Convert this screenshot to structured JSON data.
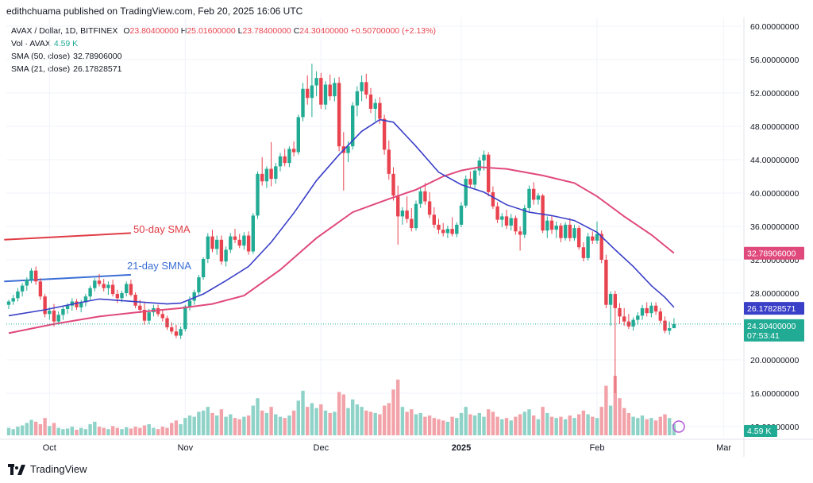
{
  "publisher": "edithchuama published on TradingView.com, Feb 20, 2025 16:06 UTC",
  "legend": {
    "symbol": "AVAX / Dollar, 1D, BITFINEX",
    "o_label": "O",
    "o_value": "23.80400000",
    "h_label": "H",
    "h_value": "25.01600000",
    "l_label": "L",
    "l_value": "23.78400000",
    "c_label": "C",
    "c_value": "24.30400000",
    "change": "+0.50700000 (+2.13%)",
    "vol_label": "Vol · AVAX",
    "vol_value": "4.59 K",
    "sma50_label": "SMA (50, close)",
    "sma50_value": "32.78906000",
    "sma21_label": "SMA (21, close)",
    "sma21_value": "26.17828571"
  },
  "colors": {
    "up": "#22ab94",
    "down": "#e8434f",
    "sma50": "#e0497b",
    "sma21": "#3a3fc8",
    "vol_up": "#8fd3c8",
    "vol_down": "#f2a3a9",
    "annot_red": "#e03c45",
    "annot_blue": "#3b6fd6",
    "badge_dark": "#131722",
    "grid": "#f0f3fa"
  },
  "annotations": {
    "sma50_text": "50-day SMA",
    "sma21_text": "21-day SMNA"
  },
  "badges": {
    "sma50": "32.78906000",
    "sma21": "26.17828571",
    "price": "24.30400000",
    "countdown": "07:53:41",
    "volume": "4.59 K"
  },
  "footer": {
    "brand": "TradingView"
  },
  "chart_data": {
    "type": "candlestick",
    "y_ticks": [
      "60.00000000",
      "56.00000000",
      "52.00000000",
      "48.00000000",
      "44.00000000",
      "40.00000000",
      "36.00000000",
      "32.00000000",
      "28.00000000",
      "24.00000000",
      "20.00000000",
      "16.00000000",
      "12.00000000"
    ],
    "ylim": [
      10.8,
      61.9
    ],
    "x_ticks": [
      {
        "label": "Oct",
        "bold": false
      },
      {
        "label": "Nov",
        "bold": false
      },
      {
        "label": "Dec",
        "bold": false
      },
      {
        "label": "2025",
        "bold": true
      },
      {
        "label": "Feb",
        "bold": false
      },
      {
        "label": "Mar",
        "bold": false
      }
    ],
    "candles": [
      [
        26.6,
        27.2,
        26.1,
        27.0
      ],
      [
        27.0,
        27.8,
        26.6,
        27.4
      ],
      [
        27.4,
        28.6,
        27.0,
        28.2
      ],
      [
        28.2,
        29.2,
        27.6,
        28.9
      ],
      [
        28.9,
        29.9,
        28.3,
        29.6
      ],
      [
        29.6,
        31.0,
        29.2,
        30.7
      ],
      [
        30.7,
        31.2,
        29.0,
        29.4
      ],
      [
        29.4,
        29.8,
        27.2,
        27.6
      ],
      [
        27.6,
        27.9,
        25.1,
        25.5
      ],
      [
        25.5,
        26.3,
        24.8,
        25.9
      ],
      [
        25.9,
        26.7,
        24.0,
        24.6
      ],
      [
        24.6,
        25.8,
        24.2,
        25.4
      ],
      [
        25.4,
        26.4,
        24.8,
        26.1
      ],
      [
        26.1,
        26.8,
        25.5,
        26.5
      ],
      [
        26.5,
        27.4,
        25.9,
        27.0
      ],
      [
        27.0,
        27.3,
        26.0,
        26.3
      ],
      [
        26.3,
        27.2,
        25.7,
        26.9
      ],
      [
        26.9,
        27.9,
        26.4,
        27.6
      ],
      [
        27.6,
        28.9,
        27.2,
        28.6
      ],
      [
        28.6,
        29.8,
        28.2,
        29.5
      ],
      [
        29.5,
        30.3,
        28.8,
        29.1
      ],
      [
        29.1,
        29.7,
        28.2,
        28.6
      ],
      [
        28.6,
        29.4,
        27.8,
        29.0
      ],
      [
        29.0,
        29.6,
        27.6,
        27.9
      ],
      [
        27.9,
        28.4,
        26.8,
        27.4
      ],
      [
        27.4,
        28.3,
        26.9,
        28.0
      ],
      [
        28.0,
        29.4,
        27.6,
        29.1
      ],
      [
        29.1,
        29.6,
        27.6,
        27.8
      ],
      [
        27.8,
        28.1,
        26.2,
        26.5
      ],
      [
        26.5,
        27.2,
        25.6,
        26.0
      ],
      [
        26.0,
        26.8,
        24.2,
        24.7
      ],
      [
        24.7,
        26.1,
        24.3,
        25.7
      ],
      [
        25.7,
        26.6,
        25.2,
        26.2
      ],
      [
        26.2,
        26.6,
        25.2,
        25.5
      ],
      [
        25.5,
        26.0,
        24.6,
        25.0
      ],
      [
        25.0,
        25.3,
        23.6,
        23.9
      ],
      [
        23.9,
        24.5,
        23.1,
        23.4
      ],
      [
        23.4,
        24.2,
        22.6,
        22.9
      ],
      [
        22.9,
        24.0,
        22.5,
        23.7
      ],
      [
        23.7,
        26.6,
        23.4,
        26.4
      ],
      [
        26.4,
        27.6,
        25.9,
        27.1
      ],
      [
        27.1,
        28.4,
        26.6,
        28.1
      ],
      [
        28.1,
        30.2,
        27.8,
        29.9
      ],
      [
        29.9,
        32.3,
        29.6,
        32.1
      ],
      [
        32.1,
        35.2,
        31.6,
        34.8
      ],
      [
        34.8,
        35.6,
        32.9,
        33.3
      ],
      [
        33.3,
        34.9,
        32.6,
        34.4
      ],
      [
        34.4,
        34.9,
        31.4,
        31.8
      ],
      [
        31.8,
        33.6,
        31.2,
        33.2
      ],
      [
        33.2,
        35.2,
        32.8,
        34.8
      ],
      [
        34.8,
        35.7,
        34.0,
        34.4
      ],
      [
        34.4,
        35.1,
        33.4,
        33.7
      ],
      [
        33.7,
        35.3,
        33.2,
        34.9
      ],
      [
        34.9,
        35.4,
        32.6,
        33.0
      ],
      [
        33.0,
        37.6,
        32.7,
        37.3
      ],
      [
        37.3,
        42.6,
        36.9,
        42.3
      ],
      [
        42.3,
        44.3,
        40.9,
        41.4
      ],
      [
        41.4,
        43.2,
        40.6,
        42.9
      ],
      [
        42.9,
        46.1,
        40.8,
        41.7
      ],
      [
        41.7,
        43.6,
        41.1,
        43.2
      ],
      [
        43.2,
        44.8,
        42.6,
        44.4
      ],
      [
        44.4,
        45.3,
        43.2,
        43.6
      ],
      [
        43.6,
        45.6,
        43.1,
        45.3
      ],
      [
        45.3,
        46.2,
        44.4,
        44.9
      ],
      [
        44.9,
        49.4,
        44.6,
        49.1
      ],
      [
        49.1,
        53.2,
        48.6,
        52.5
      ],
      [
        52.5,
        54.1,
        50.6,
        51.4
      ],
      [
        51.4,
        55.5,
        49.1,
        52.9
      ],
      [
        52.9,
        54.6,
        51.6,
        53.8
      ],
      [
        53.8,
        54.4,
        50.1,
        50.6
      ],
      [
        50.6,
        53.4,
        50.0,
        53.0
      ],
      [
        53.0,
        54.2,
        51.1,
        51.6
      ],
      [
        51.6,
        53.8,
        51.0,
        53.2
      ],
      [
        53.2,
        53.9,
        45.0,
        45.6
      ],
      [
        45.6,
        47.3,
        40.3,
        44.8
      ],
      [
        44.8,
        46.2,
        43.7,
        45.6
      ],
      [
        45.6,
        50.9,
        45.2,
        50.5
      ],
      [
        50.5,
        52.8,
        49.2,
        52.2
      ],
      [
        52.2,
        54.1,
        51.0,
        53.3
      ],
      [
        53.3,
        54.3,
        51.3,
        51.8
      ],
      [
        51.8,
        52.6,
        49.6,
        50.1
      ],
      [
        50.1,
        51.3,
        48.6,
        50.8
      ],
      [
        50.8,
        51.5,
        48.3,
        48.9
      ],
      [
        48.9,
        49.4,
        44.6,
        45.2
      ],
      [
        45.2,
        46.3,
        41.6,
        42.3
      ],
      [
        42.3,
        43.1,
        39.1,
        39.7
      ],
      [
        39.7,
        40.9,
        33.8,
        37.2
      ],
      [
        37.2,
        38.3,
        36.2,
        37.9
      ],
      [
        37.9,
        39.6,
        36.4,
        36.9
      ],
      [
        36.9,
        38.2,
        35.4,
        35.8
      ],
      [
        35.8,
        39.1,
        35.5,
        38.7
      ],
      [
        38.7,
        40.6,
        38.2,
        40.2
      ],
      [
        40.2,
        41.2,
        38.6,
        39.0
      ],
      [
        39.0,
        40.1,
        37.0,
        37.4
      ],
      [
        37.4,
        38.3,
        35.8,
        36.2
      ],
      [
        36.2,
        36.9,
        35.1,
        35.6
      ],
      [
        35.6,
        36.4,
        34.8,
        35.2
      ],
      [
        35.2,
        36.1,
        34.6,
        35.7
      ],
      [
        35.7,
        37.1,
        34.8,
        35.1
      ],
      [
        35.1,
        36.5,
        34.7,
        36.2
      ],
      [
        36.2,
        38.9,
        35.9,
        38.5
      ],
      [
        38.5,
        42.1,
        38.2,
        41.7
      ],
      [
        41.7,
        42.6,
        40.6,
        41.0
      ],
      [
        41.0,
        43.1,
        40.5,
        42.7
      ],
      [
        42.7,
        44.3,
        42.1,
        43.9
      ],
      [
        43.9,
        45.1,
        42.7,
        44.6
      ],
      [
        44.6,
        44.9,
        39.6,
        40.1
      ],
      [
        40.1,
        40.8,
        38.1,
        38.4
      ],
      [
        38.4,
        38.9,
        36.4,
        36.8
      ],
      [
        36.8,
        37.6,
        35.9,
        37.2
      ],
      [
        37.2,
        38.0,
        35.7,
        36.1
      ],
      [
        36.1,
        37.5,
        35.5,
        37.0
      ],
      [
        37.0,
        37.3,
        35.0,
        35.4
      ],
      [
        35.4,
        36.0,
        33.1,
        35.0
      ],
      [
        35.0,
        38.6,
        34.6,
        38.2
      ],
      [
        38.2,
        40.9,
        37.8,
        40.5
      ],
      [
        40.5,
        41.3,
        38.6,
        39.2
      ],
      [
        39.2,
        40.0,
        38.6,
        39.7
      ],
      [
        39.7,
        39.9,
        35.2,
        35.5
      ],
      [
        35.5,
        37.2,
        34.6,
        36.7
      ],
      [
        36.7,
        37.3,
        35.1,
        35.6
      ],
      [
        35.6,
        36.6,
        34.6,
        36.1
      ],
      [
        36.1,
        36.4,
        34.1,
        34.6
      ],
      [
        34.6,
        36.5,
        34.3,
        36.2
      ],
      [
        36.2,
        37.0,
        34.2,
        34.6
      ],
      [
        34.6,
        36.2,
        34.3,
        35.8
      ],
      [
        35.8,
        36.1,
        33.2,
        33.5
      ],
      [
        33.5,
        34.1,
        31.8,
        32.2
      ],
      [
        32.2,
        35.2,
        31.9,
        34.8
      ],
      [
        34.8,
        35.4,
        33.9,
        34.3
      ],
      [
        34.3,
        36.6,
        33.9,
        35.1
      ],
      [
        35.1,
        35.5,
        31.6,
        32.0
      ],
      [
        32.0,
        32.6,
        26.2,
        26.6
      ],
      [
        26.6,
        28.2,
        24.1,
        27.9
      ],
      [
        27.9,
        28.3,
        16.0,
        26.2
      ],
      [
        26.2,
        26.8,
        24.3,
        25.2
      ],
      [
        25.2,
        26.2,
        24.1,
        24.6
      ],
      [
        24.6,
        25.5,
        23.7,
        24.0
      ],
      [
        24.0,
        25.1,
        23.5,
        24.8
      ],
      [
        24.8,
        25.7,
        24.2,
        25.3
      ],
      [
        25.3,
        26.6,
        24.8,
        26.2
      ],
      [
        26.2,
        26.9,
        25.2,
        25.6
      ],
      [
        25.6,
        26.9,
        25.1,
        26.5
      ],
      [
        26.5,
        26.9,
        25.4,
        25.8
      ],
      [
        25.8,
        26.2,
        24.4,
        24.7
      ],
      [
        24.7,
        25.2,
        23.2,
        23.5
      ],
      [
        23.5,
        24.6,
        23.0,
        23.8
      ],
      [
        23.8,
        25.0,
        23.8,
        24.3
      ]
    ],
    "volume_levels": [
      0.12,
      0.1,
      0.14,
      0.16,
      0.2,
      0.25,
      0.22,
      0.18,
      0.28,
      0.15,
      0.2,
      0.12,
      0.1,
      0.11,
      0.14,
      0.09,
      0.12,
      0.1,
      0.18,
      0.22,
      0.14,
      0.12,
      0.1,
      0.15,
      0.12,
      0.1,
      0.13,
      0.11,
      0.14,
      0.12,
      0.16,
      0.18,
      0.12,
      0.1,
      0.14,
      0.12,
      0.2,
      0.24,
      0.18,
      0.28,
      0.32,
      0.3,
      0.38,
      0.4,
      0.46,
      0.36,
      0.32,
      0.42,
      0.3,
      0.34,
      0.28,
      0.26,
      0.3,
      0.32,
      0.48,
      0.6,
      0.4,
      0.36,
      0.46,
      0.34,
      0.3,
      0.28,
      0.32,
      0.4,
      0.56,
      0.72,
      0.46,
      0.52,
      0.44,
      0.5,
      0.4,
      0.36,
      0.38,
      0.7,
      0.66,
      0.44,
      0.58,
      0.5,
      0.46,
      0.4,
      0.38,
      0.36,
      0.34,
      0.48,
      0.52,
      0.74,
      0.9,
      0.46,
      0.38,
      0.42,
      0.34,
      0.36,
      0.3,
      0.32,
      0.28,
      0.26,
      0.24,
      0.22,
      0.3,
      0.28,
      0.36,
      0.46,
      0.34,
      0.32,
      0.36,
      0.3,
      0.42,
      0.38,
      0.3,
      0.26,
      0.28,
      0.24,
      0.3,
      0.34,
      0.38,
      0.42,
      0.32,
      0.26,
      0.46,
      0.36,
      0.3,
      0.28,
      0.3,
      0.26,
      0.32,
      0.28,
      0.34,
      0.4,
      0.34,
      0.3,
      0.28,
      0.46,
      0.8,
      0.48,
      0.96,
      0.6,
      0.44,
      0.36,
      0.3,
      0.28,
      0.32,
      0.26,
      0.28,
      0.24,
      0.3,
      0.34,
      0.28,
      0.18
    ],
    "sma21_points": [
      [
        0,
        25.3
      ],
      [
        8,
        26.0
      ],
      [
        16,
        26.9
      ],
      [
        20,
        27.3
      ],
      [
        25,
        27.1
      ],
      [
        30,
        26.9
      ],
      [
        35,
        26.7
      ],
      [
        38,
        26.8
      ],
      [
        43,
        27.9
      ],
      [
        48,
        29.5
      ],
      [
        53,
        31.2
      ],
      [
        58,
        34.1
      ],
      [
        63,
        37.6
      ],
      [
        68,
        41.5
      ],
      [
        73,
        44.6
      ],
      [
        78,
        47.4
      ],
      [
        82,
        48.8
      ],
      [
        85,
        48.5
      ],
      [
        90,
        45.6
      ],
      [
        95,
        42.5
      ],
      [
        100,
        41.0
      ],
      [
        105,
        40.1
      ],
      [
        110,
        38.6
      ],
      [
        115,
        37.7
      ],
      [
        120,
        37.3
      ],
      [
        125,
        36.7
      ],
      [
        130,
        35.3
      ],
      [
        134,
        33.2
      ],
      [
        138,
        31.2
      ],
      [
        142,
        28.9
      ],
      [
        145,
        27.5
      ],
      [
        147,
        26.3
      ]
    ],
    "sma50_points": [
      [
        0,
        23.2
      ],
      [
        10,
        24.3
      ],
      [
        20,
        25.2
      ],
      [
        30,
        25.8
      ],
      [
        38,
        26.2
      ],
      [
        45,
        26.7
      ],
      [
        52,
        27.7
      ],
      [
        60,
        30.8
      ],
      [
        68,
        34.6
      ],
      [
        76,
        37.7
      ],
      [
        84,
        39.3
      ],
      [
        90,
        40.4
      ],
      [
        96,
        42.0
      ],
      [
        100,
        42.7
      ],
      [
        104,
        43.1
      ],
      [
        110,
        42.9
      ],
      [
        118,
        42.1
      ],
      [
        125,
        41.2
      ],
      [
        130,
        39.6
      ],
      [
        136,
        37.2
      ],
      [
        142,
        35.0
      ],
      [
        147,
        32.8
      ]
    ],
    "annotation_lines": {
      "sma50": {
        "x0": -1,
        "y0": 34.4,
        "x1": 27,
        "y1": 35.2
      },
      "sma21": {
        "x0": -1,
        "y0": 29.4,
        "x1": 27,
        "y1": 30.2
      }
    }
  }
}
